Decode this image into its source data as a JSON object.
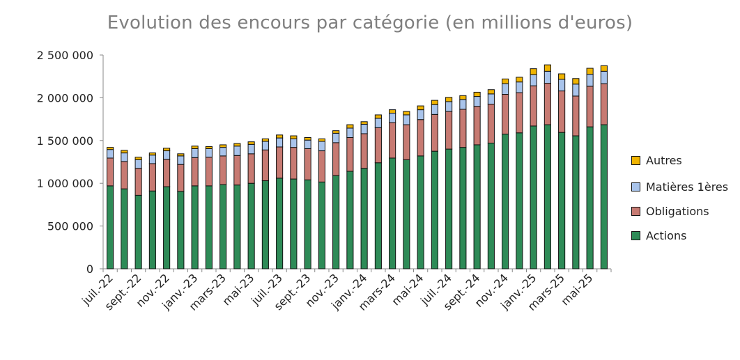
{
  "chart_data": {
    "type": "bar",
    "stacked": true,
    "title": "Evolution des encours par catégorie (en millions d'euros)",
    "xlabel": "",
    "ylabel": "",
    "ylim": [
      0,
      2500000
    ],
    "yticks": [
      0,
      500000,
      1000000,
      1500000,
      2000000,
      2500000
    ],
    "ytick_labels": [
      "0",
      "500 000",
      "1 000 000",
      "1 500 000",
      "2 000 000",
      "2 500 000"
    ],
    "grid": false,
    "legend_position": "right",
    "categories": [
      "juil.-22",
      "août-22",
      "sept.-22",
      "oct.-22",
      "nov.-22",
      "déc.-22",
      "janv.-23",
      "févr.-23",
      "mars-23",
      "avr.-23",
      "mai-23",
      "juin-23",
      "juil.-23",
      "août-23",
      "sept.-23",
      "oct.-23",
      "nov.-23",
      "déc.-23",
      "janv.-24",
      "févr.-24",
      "mars-24",
      "avr.-24",
      "mai-24",
      "juin-24",
      "juil.-24",
      "août-24",
      "sept.-24",
      "oct.-24",
      "nov.-24",
      "déc.-24",
      "janv.-25",
      "févr.-25",
      "mars-25",
      "avr.-25",
      "mai-25",
      "juin-25"
    ],
    "x_tick_labels": [
      "juil.-22",
      "sept.-22",
      "nov.-22",
      "janv.-23",
      "mars-23",
      "mai-23",
      "juil.-23",
      "sept.-23",
      "nov.-23",
      "janv.-24",
      "mars-24",
      "mai-24",
      "juil.-24",
      "sept.-24",
      "nov.-24",
      "janv.-25",
      "mars-25",
      "mai-25"
    ],
    "series": [
      {
        "name": "Actions",
        "color": "#2e8b57",
        "values": [
          970000,
          935000,
          860000,
          910000,
          960000,
          905000,
          970000,
          970000,
          985000,
          980000,
          1000000,
          1030000,
          1060000,
          1050000,
          1040000,
          1015000,
          1090000,
          1140000,
          1175000,
          1240000,
          1295000,
          1275000,
          1320000,
          1375000,
          1400000,
          1420000,
          1450000,
          1470000,
          1575000,
          1590000,
          1670000,
          1685000,
          1595000,
          1555000,
          1660000,
          1685000
        ]
      },
      {
        "name": "Obligations",
        "color": "#c77a72",
        "values": [
          325000,
          320000,
          315000,
          320000,
          320000,
          315000,
          330000,
          335000,
          335000,
          345000,
          345000,
          360000,
          365000,
          370000,
          365000,
          365000,
          385000,
          395000,
          405000,
          410000,
          415000,
          410000,
          425000,
          430000,
          440000,
          445000,
          450000,
          455000,
          465000,
          470000,
          470000,
          485000,
          485000,
          465000,
          475000,
          480000
        ]
      },
      {
        "name": "Matières 1ères",
        "color": "#a9c4eb",
        "values": [
          100000,
          100000,
          100000,
          100000,
          100000,
          100000,
          105000,
          100000,
          100000,
          110000,
          110000,
          100000,
          105000,
          100000,
          100000,
          110000,
          110000,
          110000,
          110000,
          110000,
          110000,
          115000,
          115000,
          115000,
          115000,
          115000,
          115000,
          120000,
          125000,
          125000,
          130000,
          140000,
          135000,
          140000,
          140000,
          145000
        ]
      },
      {
        "name": "Autres",
        "color": "#f0b400",
        "values": [
          25000,
          30000,
          30000,
          25000,
          30000,
          25000,
          30000,
          25000,
          30000,
          30000,
          30000,
          30000,
          35000,
          35000,
          30000,
          30000,
          30000,
          40000,
          30000,
          40000,
          40000,
          40000,
          45000,
          50000,
          50000,
          45000,
          50000,
          50000,
          55000,
          55000,
          70000,
          75000,
          65000,
          65000,
          70000,
          65000
        ]
      }
    ]
  }
}
